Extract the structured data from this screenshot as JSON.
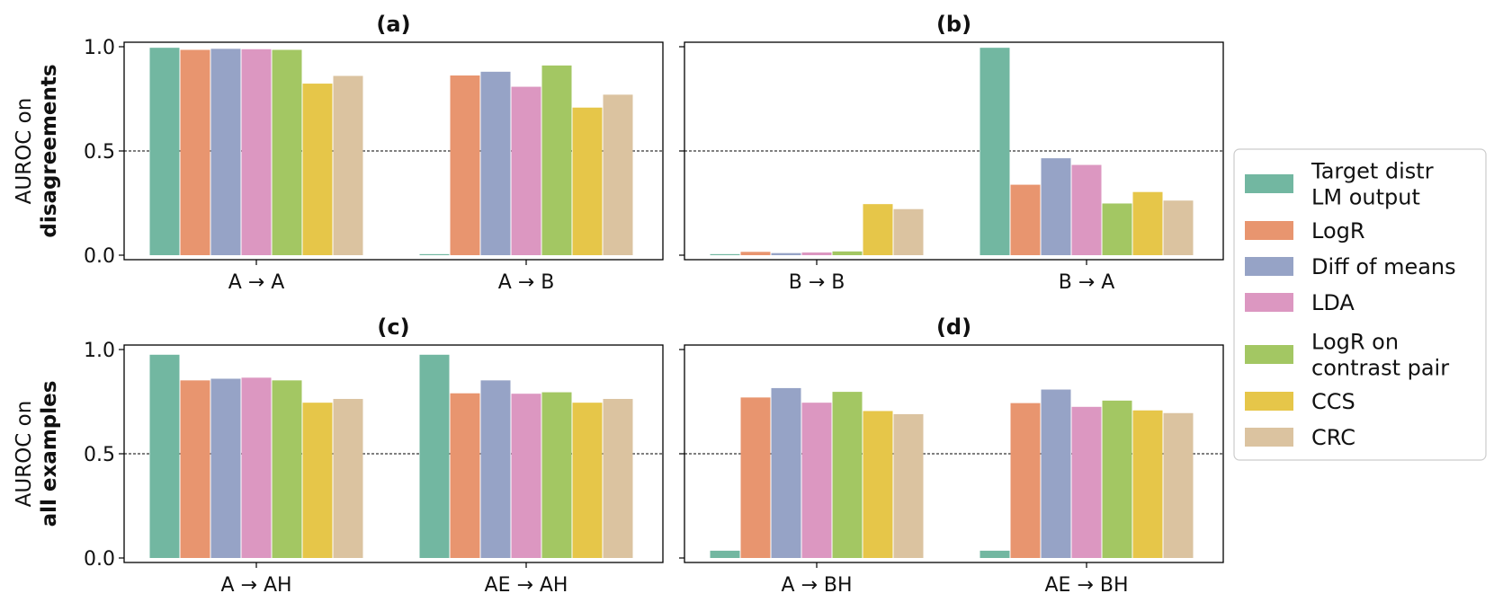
{
  "chart_data": [
    {
      "type": "bar",
      "panel": "(a)",
      "title": "(a)",
      "categories": [
        "A → A",
        "A → B"
      ],
      "ylabel": [
        "AUROC on",
        "disagreements"
      ],
      "ylim": [
        0,
        1.0
      ],
      "yticks": [
        "0.0",
        "0.5",
        "1.0"
      ],
      "reference_line": 0.5,
      "series": [
        {
          "name": "Target distr LM output",
          "values": [
            0.995,
            0.005
          ]
        },
        {
          "name": "LogR",
          "values": [
            0.985,
            0.862
          ]
        },
        {
          "name": "Diff of means",
          "values": [
            0.99,
            0.88
          ]
        },
        {
          "name": "LDA",
          "values": [
            0.988,
            0.808
          ]
        },
        {
          "name": "LogR on contrast pair",
          "values": [
            0.985,
            0.91
          ]
        },
        {
          "name": "CCS",
          "values": [
            0.823,
            0.708
          ]
        },
        {
          "name": "CRC",
          "values": [
            0.86,
            0.77
          ]
        }
      ]
    },
    {
      "type": "bar",
      "panel": "(b)",
      "title": "(b)",
      "categories": [
        "B → B",
        "B → A"
      ],
      "ylim": [
        0,
        1.0
      ],
      "reference_line": 0.5,
      "series": [
        {
          "name": "Target distr LM output",
          "values": [
            0.005,
            0.995
          ]
        },
        {
          "name": "LogR",
          "values": [
            0.016,
            0.338
          ]
        },
        {
          "name": "Diff of means",
          "values": [
            0.01,
            0.465
          ]
        },
        {
          "name": "LDA",
          "values": [
            0.013,
            0.433
          ]
        },
        {
          "name": "LogR on contrast pair",
          "values": [
            0.018,
            0.248
          ]
        },
        {
          "name": "CCS",
          "values": [
            0.245,
            0.303
          ]
        },
        {
          "name": "CRC",
          "values": [
            0.221,
            0.262
          ]
        }
      ]
    },
    {
      "type": "bar",
      "panel": "(c)",
      "title": "(c)",
      "categories": [
        "A → AH",
        "AE → AH"
      ],
      "ylabel": [
        "AUROC on",
        "all examples"
      ],
      "ylim": [
        0,
        1.0
      ],
      "yticks": [
        "0.0",
        "0.5",
        "1.0"
      ],
      "reference_line": 0.5,
      "series": [
        {
          "name": "Target distr LM output",
          "values": [
            0.975,
            0.975
          ]
        },
        {
          "name": "LogR",
          "values": [
            0.852,
            0.79
          ]
        },
        {
          "name": "Diff of means",
          "values": [
            0.86,
            0.852
          ]
        },
        {
          "name": "LDA",
          "values": [
            0.865,
            0.788
          ]
        },
        {
          "name": "LogR on contrast pair",
          "values": [
            0.852,
            0.795
          ]
        },
        {
          "name": "CCS",
          "values": [
            0.745,
            0.745
          ]
        },
        {
          "name": "CRC",
          "values": [
            0.763,
            0.763
          ]
        }
      ]
    },
    {
      "type": "bar",
      "panel": "(d)",
      "title": "(d)",
      "categories": [
        "A → BH",
        "AE → BH"
      ],
      "ylim": [
        0,
        1.0
      ],
      "reference_line": 0.5,
      "series": [
        {
          "name": "Target distr LM output",
          "values": [
            0.035,
            0.035
          ]
        },
        {
          "name": "LogR",
          "values": [
            0.77,
            0.743
          ]
        },
        {
          "name": "Diff of means",
          "values": [
            0.815,
            0.808
          ]
        },
        {
          "name": "LDA",
          "values": [
            0.745,
            0.725
          ]
        },
        {
          "name": "LogR on contrast pair",
          "values": [
            0.797,
            0.755
          ]
        },
        {
          "name": "CCS",
          "values": [
            0.705,
            0.708
          ]
        },
        {
          "name": "CRC",
          "values": [
            0.69,
            0.695
          ]
        }
      ]
    }
  ],
  "legend": {
    "placement": "right",
    "entries": [
      {
        "label_lines": [
          "Target distr",
          "LM output"
        ],
        "color": "#72b7a1"
      },
      {
        "label_lines": [
          "LogR"
        ],
        "color": "#e8956f"
      },
      {
        "label_lines": [
          "Diff of means"
        ],
        "color": "#96a3c6"
      },
      {
        "label_lines": [
          "LDA"
        ],
        "color": "#dc97c1"
      },
      {
        "label_lines": [
          "LogR on",
          "contrast pair"
        ],
        "color": "#a3c763"
      },
      {
        "label_lines": [
          "CCS"
        ],
        "color": "#e6c649"
      },
      {
        "label_lines": [
          "CRC"
        ],
        "color": "#dbc3a0"
      }
    ]
  },
  "colors": [
    "#72b7a1",
    "#e8956f",
    "#96a3c6",
    "#dc97c1",
    "#a3c763",
    "#e6c649",
    "#dbc3a0"
  ]
}
